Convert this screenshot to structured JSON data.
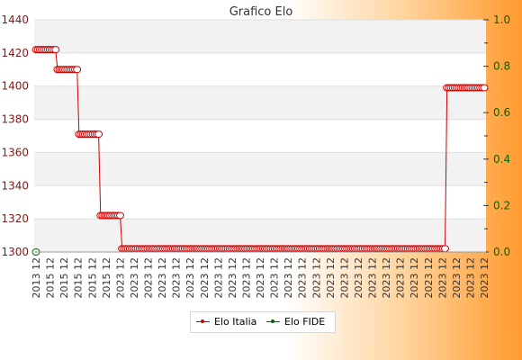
{
  "chart_data": {
    "type": "line",
    "title": "Grafico Elo",
    "y_left": {
      "ticks": [
        "1300",
        "1320",
        "1340",
        "1360",
        "1380",
        "1400",
        "1420",
        "1440"
      ],
      "lim": [
        1300,
        1440
      ]
    },
    "y_right": {
      "ticks": [
        "0.0",
        "0.2",
        "0.4",
        "0.6",
        "0.8",
        "1.0"
      ],
      "lim": [
        0,
        1
      ]
    },
    "grid": true,
    "legend_position": "bottom-center",
    "x_label_sample": [
      "2013 12",
      "2015 12",
      "2023 12"
    ],
    "series": [
      {
        "name": "Elo Italia",
        "color": "#cc0000",
        "values": [
          1422,
          1422,
          1422,
          1422,
          1422,
          1422,
          1422,
          1422,
          1422,
          1422,
          1422,
          1410,
          1410,
          1410,
          1410,
          1410,
          1410,
          1410,
          1410,
          1410,
          1410,
          1410,
          1371,
          1371,
          1371,
          1371,
          1371,
          1371,
          1371,
          1371,
          1371,
          1371,
          1371,
          1322,
          1322,
          1322,
          1322,
          1322,
          1322,
          1322,
          1322,
          1322,
          1322,
          1322,
          1302,
          1302,
          1302,
          1302,
          1302,
          1302,
          1302,
          1302,
          1302,
          1302,
          1302,
          1302,
          1302,
          1302,
          1302,
          1302,
          1302,
          1302,
          1302,
          1302,
          1302,
          1302,
          1302,
          1302,
          1302,
          1302,
          1302,
          1302,
          1302,
          1302,
          1302,
          1302,
          1302,
          1302,
          1302,
          1302,
          1302,
          1302,
          1302,
          1302,
          1302,
          1302,
          1302,
          1302,
          1302,
          1302,
          1302,
          1302,
          1302,
          1302,
          1302,
          1302,
          1302,
          1302,
          1302,
          1302,
          1302,
          1302,
          1302,
          1302,
          1302,
          1302,
          1302,
          1302,
          1302,
          1302,
          1302,
          1302,
          1302,
          1302,
          1302,
          1302,
          1302,
          1302,
          1302,
          1302,
          1302,
          1302,
          1302,
          1302,
          1302,
          1302,
          1302,
          1302,
          1302,
          1302,
          1302,
          1302,
          1302,
          1302,
          1302,
          1302,
          1302,
          1302,
          1302,
          1302,
          1302,
          1302,
          1302,
          1302,
          1302,
          1302,
          1302,
          1302,
          1302,
          1302,
          1302,
          1302,
          1302,
          1302,
          1302,
          1302,
          1302,
          1302,
          1302,
          1302,
          1302,
          1302,
          1302,
          1302,
          1302,
          1302,
          1302,
          1302,
          1302,
          1302,
          1302,
          1302,
          1302,
          1302,
          1302,
          1302,
          1302,
          1302,
          1302,
          1302,
          1302,
          1302,
          1302,
          1302,
          1302,
          1302,
          1302,
          1302,
          1302,
          1302,
          1302,
          1302,
          1302,
          1302,
          1302,
          1302,
          1302,
          1302,
          1302,
          1302,
          1302,
          1302,
          1302,
          1302,
          1302,
          1302,
          1302,
          1302,
          1302,
          1302,
          1399,
          1399,
          1399,
          1399,
          1399,
          1399,
          1399,
          1399,
          1399,
          1399,
          1399,
          1399,
          1399,
          1399,
          1399,
          1399,
          1399,
          1399,
          1399,
          1399
        ]
      },
      {
        "name": "Elo FIDE",
        "color": "#006600",
        "values": [
          0
        ]
      }
    ]
  }
}
